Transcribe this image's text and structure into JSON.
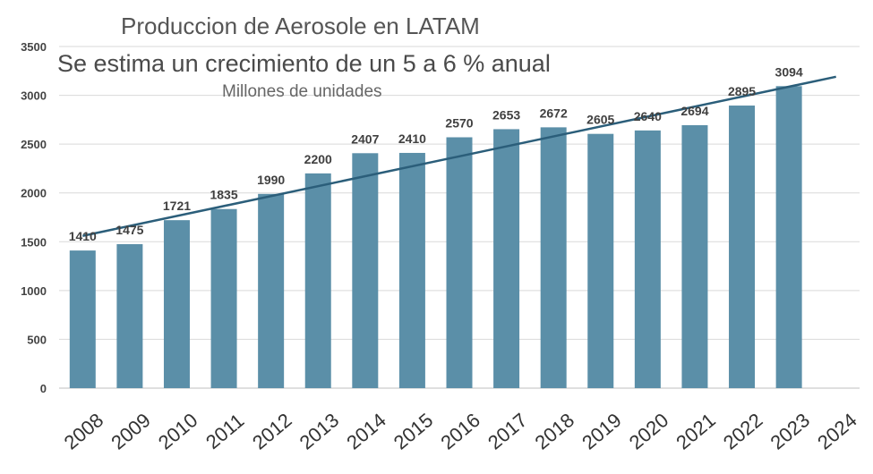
{
  "chart_data": {
    "type": "bar",
    "title": "Produccion de Aerosole en LATAM",
    "subtitle": "Se estima un crecimiento de un 5 a 6 % anual",
    "unit_label": "Millones de unidades",
    "categories": [
      "2008",
      "2009",
      "2010",
      "2011",
      "2012",
      "2013",
      "2014",
      "2015",
      "2016",
      "2017",
      "2018",
      "2019",
      "2020",
      "2021",
      "2022",
      "2023",
      "2024"
    ],
    "values": [
      1410,
      1475,
      1721,
      1835,
      1990,
      2200,
      2407,
      2410,
      2570,
      2653,
      2672,
      2605,
      2640,
      2694,
      2895,
      3094,
      null
    ],
    "data_labels": [
      "1410",
      "1475",
      "1721",
      "1835",
      "1990",
      "2200",
      "2407",
      "2410",
      "2570",
      "2653",
      "2672",
      "2605",
      "2640",
      "2694",
      "2895",
      "3094",
      ""
    ],
    "ylim": [
      0,
      3500
    ],
    "yticks": [
      0,
      500,
      1000,
      1500,
      2000,
      2500,
      3000,
      3500
    ],
    "grid": true,
    "bar_color": "#5b8fa8",
    "trendline": {
      "from_year": "2008",
      "from_value": 1560,
      "to_year": "2024",
      "to_value": 3190,
      "color": "#2b5e7a"
    },
    "legend": "none"
  }
}
